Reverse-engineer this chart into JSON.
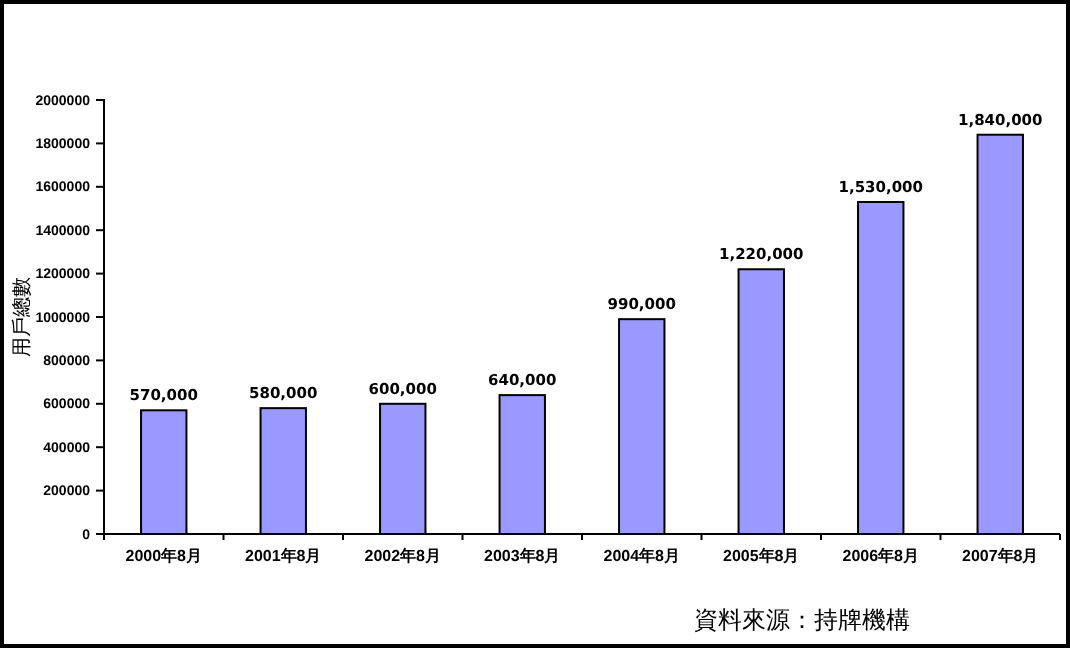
{
  "chart_data": {
    "type": "bar",
    "ylabel": "用戶總數",
    "categories": [
      "2000年8月",
      "2001年8月",
      "2002年8月",
      "2003年8月",
      "2004年8月",
      "2005年8月",
      "2006年8月",
      "2007年8月"
    ],
    "values": [
      570000,
      580000,
      600000,
      640000,
      990000,
      1220000,
      1530000,
      1840000
    ],
    "value_labels": [
      "570,000",
      "580,000",
      "600,000",
      "640,000",
      "990,000",
      "1,220,000",
      "1,530,000",
      "1,840,000"
    ],
    "color": "#9999ff",
    "ylim": [
      0,
      2000000
    ],
    "yticks": [
      0,
      200000,
      400000,
      600000,
      800000,
      1000000,
      1200000,
      1400000,
      1600000,
      1800000,
      2000000
    ],
    "grid": false,
    "annotations": [
      "資料來源：持牌機構"
    ]
  }
}
